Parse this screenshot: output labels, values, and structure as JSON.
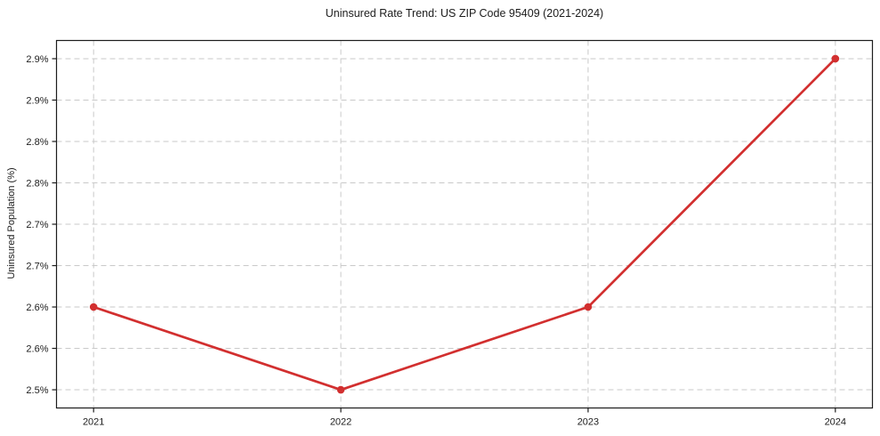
{
  "chart_data": {
    "type": "line",
    "title": "Uninsured Rate Trend: US ZIP Code 95409 (2021-2024)",
    "xlabel": "",
    "ylabel": "Uninsured Population (%)",
    "x": [
      2021,
      2022,
      2023,
      2024
    ],
    "x_tick_labels": [
      "2021",
      "2022",
      "2023",
      "2024"
    ],
    "values": [
      2.6,
      2.5,
      2.6,
      2.9
    ],
    "y_ticks": [
      {
        "value": 2.5,
        "label": "2.5%"
      },
      {
        "value": 2.55,
        "label": "2.6%"
      },
      {
        "value": 2.6,
        "label": "2.6%"
      },
      {
        "value": 2.65,
        "label": "2.7%"
      },
      {
        "value": 2.7,
        "label": "2.7%"
      },
      {
        "value": 2.75,
        "label": "2.8%"
      },
      {
        "value": 2.8,
        "label": "2.8%"
      },
      {
        "value": 2.85,
        "label": "2.9%"
      },
      {
        "value": 2.9,
        "label": "2.9%"
      }
    ],
    "xlim": [
      2020.85,
      2024.15
    ],
    "ylim": [
      2.478,
      2.922
    ],
    "grid": true,
    "grid_style": "dashed",
    "legend": false,
    "colors": {
      "line": "#d22f2f",
      "marker": "#d22f2f",
      "grid": "#c9c9c9",
      "spine": "#1c1c1c",
      "text": "#1c1c1c",
      "background": "#ffffff"
    }
  }
}
